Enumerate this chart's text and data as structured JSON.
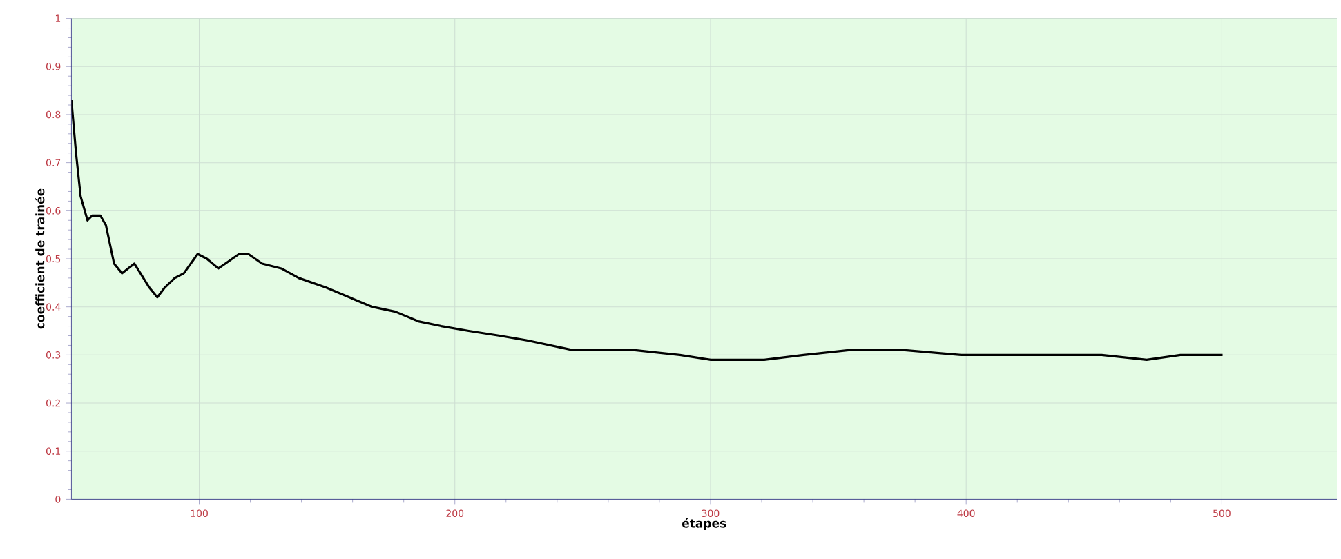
{
  "chart_data": {
    "type": "line",
    "xlabel": "étapes",
    "ylabel": "coefficient de trainée",
    "x": [
      50,
      51.8,
      53.6,
      56.3,
      58.1,
      61.3,
      63.5,
      66.7,
      69.8,
      74.6,
      77,
      80.5,
      83.6,
      86.5,
      90.4,
      94,
      99.4,
      103,
      107.5,
      110.2,
      115.6,
      119.2,
      124.6,
      132.1,
      139,
      149.7,
      158.7,
      167.7,
      176.7,
      185.7,
      194.7,
      205.4,
      217.6,
      228.6,
      246.2,
      256.1,
      270.4,
      288,
      300.1,
      321,
      336.4,
      354,
      376,
      398,
      420,
      442,
      453,
      470.6,
      483.8,
      500.3
    ],
    "values": [
      0.83,
      0.72,
      0.63,
      0.58,
      0.59,
      0.59,
      0.57,
      0.49,
      0.47,
      0.49,
      0.47,
      0.44,
      0.42,
      0.44,
      0.46,
      0.47,
      0.51,
      0.5,
      0.48,
      0.49,
      0.51,
      0.51,
      0.49,
      0.48,
      0.46,
      0.44,
      0.42,
      0.4,
      0.39,
      0.37,
      0.36,
      0.35,
      0.34,
      0.33,
      0.31,
      0.31,
      0.31,
      0.3,
      0.29,
      0.29,
      0.3,
      0.31,
      0.31,
      0.3,
      0.3,
      0.3,
      0.3,
      0.29,
      0.3,
      0.3
    ],
    "color": "#000000",
    "xlim": [
      50,
      545
    ],
    "ylim": [
      0,
      1
    ],
    "xticks": [
      100,
      200,
      300,
      400,
      500
    ],
    "yticks": [
      0,
      0.1,
      0.2,
      0.3,
      0.4,
      0.5,
      0.6,
      0.7,
      0.8,
      0.9,
      1
    ],
    "grid": true
  }
}
